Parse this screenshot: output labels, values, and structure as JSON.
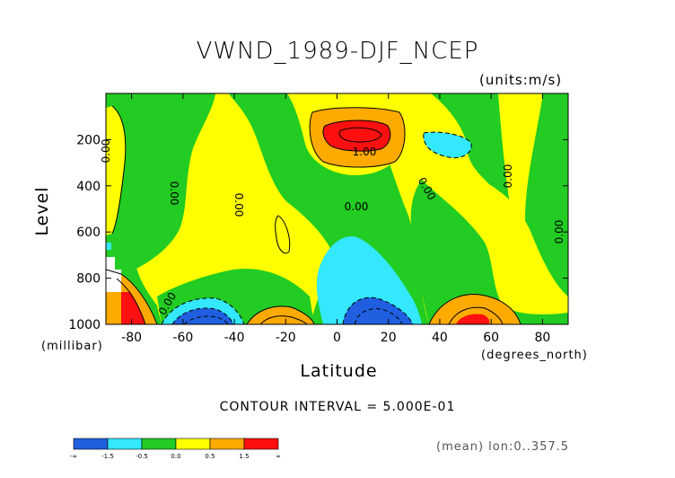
{
  "chart_data": {
    "type": "heatmap",
    "title": "VWND_1989-DJF_NCEP",
    "units_label": "(units:m/s)",
    "ylabel": "Level",
    "ylabel_units": "(millibar)",
    "xlabel": "Latitude",
    "xlabel_units": "(degrees_north)",
    "x_ticks": [
      "-80",
      "-60",
      "-40",
      "-20",
      "0",
      "20",
      "40",
      "60",
      "80"
    ],
    "x_tick_values": [
      -80,
      -60,
      -40,
      -20,
      0,
      20,
      40,
      60,
      80
    ],
    "y_ticks": [
      "200",
      "400",
      "600",
      "800",
      "1000"
    ],
    "y_tick_values": [
      200,
      400,
      600,
      800,
      1000
    ],
    "xlim": [
      -90,
      90
    ],
    "ylim": [
      1000,
      0
    ],
    "contour_interval_text": "CONTOUR INTERVAL = 5.000E-01",
    "contour_labels": [
      "0.00",
      "1.00"
    ],
    "colorbar": {
      "levels": [
        "-∞",
        "-1.5",
        "-0.5",
        "0.0",
        "0.5",
        "1.5",
        "∞"
      ],
      "colors": [
        "#1f5fe0",
        "#33e8ff",
        "#22cc22",
        "#ffff00",
        "#ffaa00",
        "#ff1010"
      ]
    },
    "footnote": "(mean) lon:0..357.5"
  }
}
